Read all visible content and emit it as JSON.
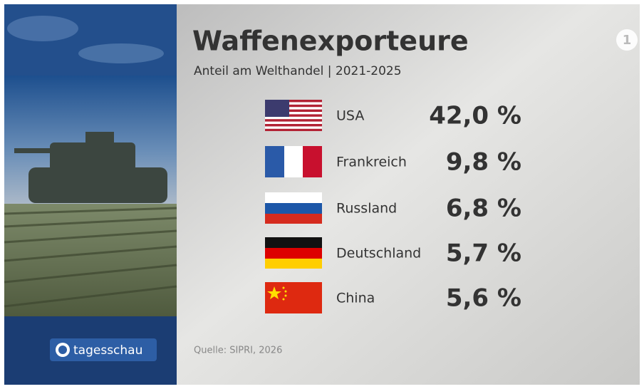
{
  "header": {
    "title": "Waffenexporteure",
    "subtitle": "Anteil am Welthandel | 2021-2025"
  },
  "rows": [
    {
      "country": "USA",
      "share": "42,0 %"
    },
    {
      "country": "Frankreich",
      "share": "9,8 %"
    },
    {
      "country": "Russland",
      "share": "6,8 %"
    },
    {
      "country": "Deutschland",
      "share": "5,7 %"
    },
    {
      "country": "China",
      "share": "5,6 %"
    }
  ],
  "source": "Quelle: SIPRI, 2026",
  "logo": "tagesschau"
}
